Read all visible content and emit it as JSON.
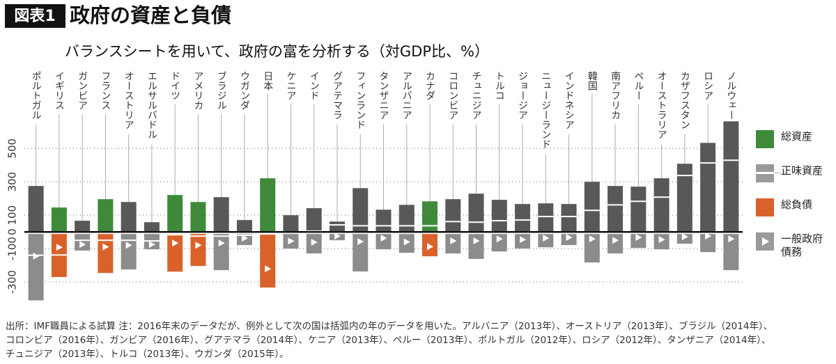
{
  "chart_data": {
    "type": "balance",
    "label": "図表1",
    "title": "政府の資産と負債",
    "subtitle": "バランスシートを用いて、政府の富を分析する（対GDP比、%）",
    "categories": [
      "ポルトガル",
      "イギリス",
      "ガンビア",
      "フランス",
      "オーストリア",
      "エルサルバドル",
      "ドイツ",
      "アメリカ",
      "ブラジル",
      "ウガンダ",
      "日本",
      "ケニア",
      "インド",
      "グアテマラ",
      "フィンランド",
      "タンザニア",
      "アルバニア",
      "カナダ",
      "コロンビア",
      "チュニジア",
      "トルコ",
      "ジョージア",
      "ニュージーランド",
      "インドネシア",
      "韓国",
      "南アフリカ",
      "ペルー",
      "オーストラリア",
      "カザフスタン",
      "ロシア",
      "ノルウェー"
    ],
    "series": [
      {
        "name": "総資産",
        "color": "#3f8a3a",
        "colors": [
          "#585858",
          "#3f8a3a",
          "#585858",
          "#3f8a3a",
          "#585858",
          "#585858",
          "#3f8a3a",
          "#3f8a3a",
          "#585858",
          "#585858",
          "#3f8a3a",
          "#585858",
          "#585858",
          "#585858",
          "#585858",
          "#585858",
          "#585858",
          "#3f8a3a",
          "#585858",
          "#585858",
          "#585858",
          "#585858",
          "#585858",
          "#585858",
          "#585858",
          "#585858",
          "#585858",
          "#585858",
          "#585858",
          "#585858",
          "#585858"
        ],
        "values": [
          275,
          146,
          67,
          196,
          179,
          58,
          221,
          179,
          208,
          71,
          321,
          100,
          142,
          62,
          262,
          133,
          162,
          183,
          196,
          229,
          192,
          167,
          171,
          167,
          300,
          275,
          271,
          321,
          408,
          533,
          662
        ]
      },
      {
        "name": "正味資産",
        "color": "#ffffff",
        "values": [
          -140,
          -138,
          -50,
          -50,
          -50,
          -54,
          -17,
          -25,
          -25,
          -20,
          -12,
          0,
          5,
          42,
          37,
          37,
          37,
          37,
          62,
          58,
          67,
          71,
          92,
          92,
          129,
          162,
          183,
          208,
          338,
          413,
          429
        ]
      },
      {
        "name": "総負債",
        "color": "#d9622b",
        "colors": [
          "#8c8c8c",
          "#d9622b",
          "#8c8c8c",
          "#d9622b",
          "#8c8c8c",
          "#8c8c8c",
          "#d9622b",
          "#d9622b",
          "#8c8c8c",
          "#8c8c8c",
          "#d9622b",
          "#8c8c8c",
          "#8c8c8c",
          "#8c8c8c",
          "#8c8c8c",
          "#8c8c8c",
          "#8c8c8c",
          "#d9622b",
          "#8c8c8c",
          "#8c8c8c",
          "#8c8c8c",
          "#8c8c8c",
          "#8c8c8c",
          "#8c8c8c",
          "#8c8c8c",
          "#8c8c8c",
          "#8c8c8c",
          "#8c8c8c",
          "#8c8c8c",
          "#8c8c8c",
          "#8c8c8c"
        ],
        "values": [
          -410,
          -270,
          -112,
          -246,
          -225,
          -104,
          -238,
          -204,
          -229,
          -79,
          -333,
          -100,
          -129,
          -50,
          -237,
          -104,
          -125,
          -146,
          -129,
          -162,
          -117,
          -100,
          -92,
          -79,
          -183,
          -129,
          -96,
          -104,
          -71,
          -121,
          -229
        ]
      },
      {
        "name": "一般政府債務",
        "color": "#ffffff",
        "values": [
          -145,
          -92,
          -75,
          -90,
          -80,
          -75,
          -67,
          -80,
          -67,
          -37,
          -221,
          -55,
          -62,
          -25,
          -58,
          -37,
          -60,
          -88,
          -54,
          -54,
          -42,
          -46,
          -37,
          -33,
          -42,
          -50,
          -33,
          -46,
          -29,
          -25,
          -42
        ]
      }
    ],
    "ylim": [
      -420,
      680
    ],
    "yticks": [
      -300,
      -100,
      0,
      100,
      300,
      500
    ],
    "grid": true,
    "note": "出所：IMF職員による試算 注：2016年末のデータだが、例外として次の国は括弧内の年のデータを用いた。アルバニア（2013年）、オーストリア（2013年）、ブラジル（2014年）、コロンビア（2016年）、ガンビア（2016年）、グアテマラ（2014年）、ケニア（2013年）、ペルー（2013年）、ポルトガル（2012年）、ロシア（2012年）、タンザニア（2014年）、チュニジア（2013年）、トルコ（2013年）、ウガンダ（2015年）。"
  }
}
